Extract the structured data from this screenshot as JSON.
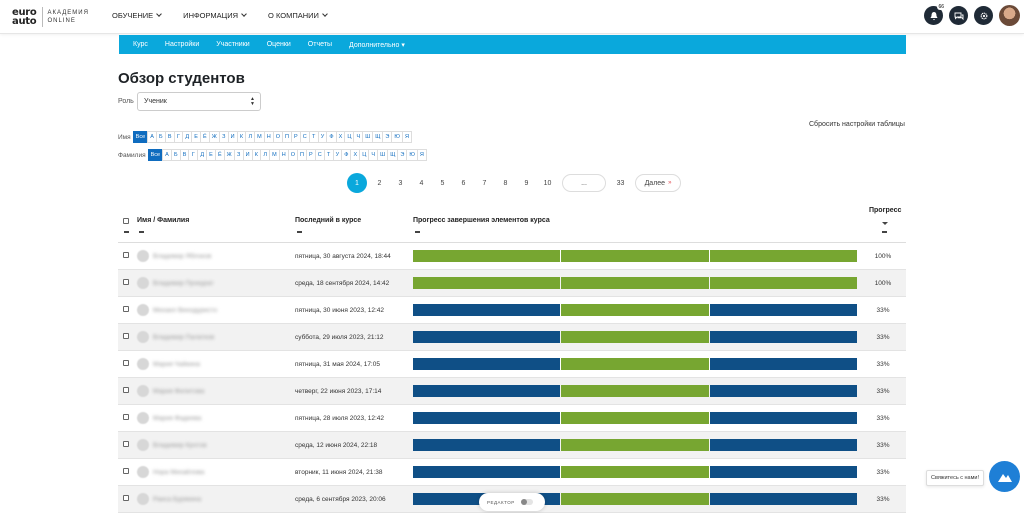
{
  "brand": {
    "mark_top": "euro",
    "mark_bottom": "auto",
    "text_line1": "АКАДЕМИЯ",
    "text_line2": "ONLINE"
  },
  "nav": [
    {
      "label": "ОБУЧЕНИЕ"
    },
    {
      "label": "ИНФОРМАЦИЯ"
    },
    {
      "label": "О КОМПАНИИ"
    }
  ],
  "top_icons": {
    "notifications_badge": "66"
  },
  "subnav": [
    "Курс",
    "Настройки",
    "Участники",
    "Оценки",
    "Отчеты",
    "Дополнительно ▾"
  ],
  "page_title": "Обзор студентов",
  "role": {
    "label": "Роль",
    "value": "Ученик"
  },
  "reset_label": "Сбросить настройки таблицы",
  "first_name_filter": {
    "label": "Имя",
    "letters": [
      "Все",
      "А",
      "Б",
      "В",
      "Г",
      "Д",
      "Е",
      "Ё",
      "Ж",
      "З",
      "И",
      "К",
      "Л",
      "М",
      "Н",
      "О",
      "П",
      "Р",
      "С",
      "Т",
      "У",
      "Ф",
      "Х",
      "Ц",
      "Ч",
      "Ш",
      "Щ",
      "Э",
      "Ю",
      "Я"
    ]
  },
  "last_name_filter": {
    "label": "Фамилия",
    "letters": [
      "Все",
      "А",
      "Б",
      "В",
      "Г",
      "Д",
      "Е",
      "Ё",
      "Ж",
      "З",
      "И",
      "К",
      "Л",
      "М",
      "Н",
      "О",
      "П",
      "Р",
      "С",
      "Т",
      "У",
      "Ф",
      "Х",
      "Ц",
      "Ч",
      "Ш",
      "Щ",
      "Э",
      "Ю",
      "Я"
    ]
  },
  "pagination": {
    "pages": [
      "1",
      "2",
      "3",
      "4",
      "5",
      "6",
      "7",
      "8",
      "9",
      "10"
    ],
    "ellipsis": "...",
    "last": "33",
    "next": "Далее",
    "next_arrow": "»",
    "current": "1"
  },
  "table": {
    "headers": {
      "name": "Имя / Фамилия",
      "last_access": "Последний в курсе",
      "progress_bar": "Прогресс завершения элементов курса",
      "progress": "Прогресс"
    },
    "rows": [
      {
        "name": "Владимир Яблоков",
        "date": "пятница, 30 августа 2024, 18:44",
        "segments": [
          1,
          1,
          1
        ],
        "pct": "100%"
      },
      {
        "name": "Владимир Прокурат",
        "date": "среда, 18 сентября 2024, 14:42",
        "segments": [
          1,
          1,
          1
        ],
        "pct": "100%"
      },
      {
        "name": "Михаил Винодуристо",
        "date": "пятница, 30 июня 2023, 12:42",
        "segments": [
          0,
          1,
          0
        ],
        "pct": "33%"
      },
      {
        "name": "Владимир Палатков",
        "date": "суббота, 29 июля 2023, 21:12",
        "segments": [
          0,
          1,
          0
        ],
        "pct": "33%"
      },
      {
        "name": "Мария Чайкина",
        "date": "пятница, 31 мая 2024, 17:05",
        "segments": [
          0,
          1,
          0
        ],
        "pct": "33%"
      },
      {
        "name": "Мария Филитова",
        "date": "четверг, 22 июня 2023, 17:14",
        "segments": [
          0,
          1,
          0
        ],
        "pct": "33%"
      },
      {
        "name": "Мария Фадеева",
        "date": "пятница, 28 июля 2023, 12:42",
        "segments": [
          0,
          1,
          0
        ],
        "pct": "33%"
      },
      {
        "name": "Владимир Кротов",
        "date": "среда, 12 июня 2024, 22:18",
        "segments": [
          0,
          1,
          0
        ],
        "pct": "33%"
      },
      {
        "name": "Нора Михайлова",
        "date": "вторник, 11 июня 2024, 21:38",
        "segments": [
          0,
          1,
          0
        ],
        "pct": "33%"
      },
      {
        "name": "Раиса Бурякина",
        "date": "среда, 6 сентября 2023, 20:06",
        "segments": [
          0,
          1,
          0
        ],
        "pct": "33%"
      }
    ]
  },
  "editor_label": "РЕДАКТОР",
  "contact_tip": "Свяжитесь с нами!",
  "colors": {
    "accent": "#0aa8dc",
    "done": "#77a631",
    "todo": "#0f4f86",
    "link": "#0f6cbf"
  }
}
